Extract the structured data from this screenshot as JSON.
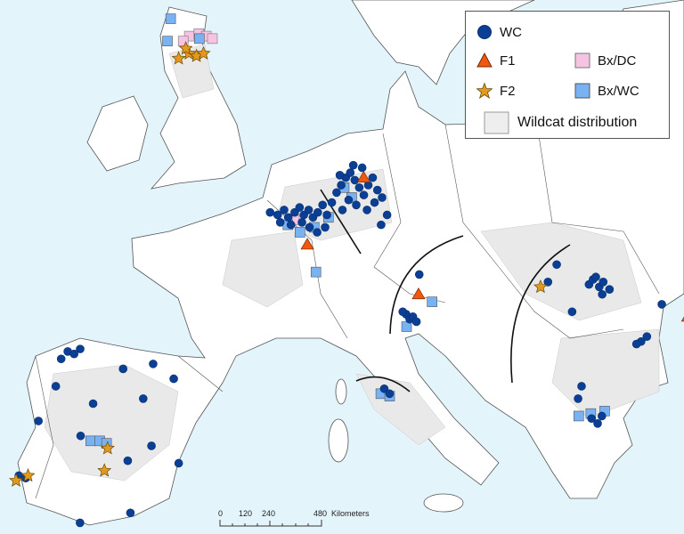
{
  "colors": {
    "sea": "#e3f4fb",
    "land": "#ffffff",
    "border": "#555555",
    "wildcat_distribution": "#e9e9e9",
    "WC": "#0b3f95",
    "F1": "#f0580f",
    "F2": "#e39a1c",
    "Bx/DC": "#f7c3e2",
    "Bx/WC": "#78b2f3"
  },
  "legend": {
    "items": [
      {
        "key": "WC",
        "label": "WC",
        "symbol": "circle"
      },
      {
        "key": "F1",
        "label": "F1",
        "symbol": "triangle"
      },
      {
        "key": "Bx/DC",
        "label": "Bx/DC",
        "symbol": "square"
      },
      {
        "key": "F2",
        "label": "F2",
        "symbol": "star"
      },
      {
        "key": "Bx/WC",
        "label": "Bx/WC",
        "symbol": "square"
      },
      {
        "key": "dist",
        "label": "Wildcat distribution",
        "symbol": "area"
      }
    ]
  },
  "scale_bar": {
    "ticks": [
      "0",
      "120",
      "240",
      "480"
    ],
    "unit": "Kilometers"
  },
  "markers": {
    "WC": [
      [
        3.4,
        49.5
      ],
      [
        3.9,
        49.4
      ],
      [
        4.3,
        49.6
      ],
      [
        4.6,
        49.3
      ],
      [
        5.0,
        49.5
      ],
      [
        5.3,
        49.7
      ],
      [
        5.6,
        49.4
      ],
      [
        5.9,
        49.6
      ],
      [
        6.2,
        49.3
      ],
      [
        6.5,
        49.5
      ],
      [
        6.8,
        49.8
      ],
      [
        7.1,
        49.4
      ],
      [
        4.1,
        49.1
      ],
      [
        4.8,
        49.0
      ],
      [
        5.5,
        49.1
      ],
      [
        6.0,
        48.9
      ],
      [
        7.4,
        49.9
      ],
      [
        7.7,
        50.3
      ],
      [
        8.0,
        50.6
      ],
      [
        8.3,
        50.9
      ],
      [
        8.6,
        51.1
      ],
      [
        8.9,
        50.8
      ],
      [
        9.2,
        50.5
      ],
      [
        9.5,
        50.2
      ],
      [
        9.8,
        50.6
      ],
      [
        10.1,
        50.9
      ],
      [
        10.4,
        50.4
      ],
      [
        8.5,
        50.0
      ],
      [
        9.0,
        49.8
      ],
      [
        9.7,
        49.6
      ],
      [
        10.2,
        49.9
      ],
      [
        10.7,
        50.1
      ],
      [
        8.1,
        49.6
      ],
      [
        8.8,
        51.4
      ],
      [
        9.4,
        51.3
      ],
      [
        7.9,
        51.0
      ],
      [
        11.0,
        49.4
      ],
      [
        10.6,
        49.0
      ],
      [
        6.5,
        48.7
      ],
      [
        7.0,
        48.9
      ],
      [
        12.0,
        45.4
      ],
      [
        12.2,
        45.2
      ],
      [
        12.4,
        45.3
      ],
      [
        11.8,
        45.5
      ],
      [
        12.6,
        45.1
      ],
      [
        12.9,
        47.0
      ],
      [
        23.3,
        46.6
      ],
      [
        23.6,
        46.8
      ],
      [
        23.9,
        46.5
      ],
      [
        24.2,
        46.7
      ],
      [
        24.5,
        46.4
      ],
      [
        23.8,
        46.9
      ],
      [
        24.0,
        46.2
      ],
      [
        21.5,
        47.4
      ],
      [
        20.8,
        46.7
      ],
      [
        22.0,
        45.5
      ],
      [
        25.8,
        44.3
      ],
      [
        26.2,
        44.5
      ],
      [
        25.5,
        44.2
      ],
      [
        22.2,
        41.2
      ],
      [
        22.5,
        41.0
      ],
      [
        22.8,
        41.3
      ],
      [
        21.9,
        42.5
      ],
      [
        21.6,
        42.0
      ],
      [
        27.5,
        45.8
      ],
      [
        10.6,
        42.4
      ],
      [
        10.9,
        42.2
      ],
      [
        -7.9,
        43.9
      ],
      [
        -7.5,
        43.8
      ],
      [
        -7.2,
        44.0
      ],
      [
        -8.2,
        43.6
      ],
      [
        -4.5,
        43.2
      ],
      [
        -2.8,
        43.4
      ],
      [
        -1.5,
        42.8
      ],
      [
        -3.1,
        42.0
      ],
      [
        -5.9,
        41.8
      ],
      [
        -8.8,
        41.1
      ],
      [
        -2.3,
        40.1
      ],
      [
        -3.5,
        39.5
      ],
      [
        -0.7,
        39.4
      ],
      [
        -9.3,
        38.9
      ],
      [
        -8.9,
        38.8
      ],
      [
        -5.6,
        37.0
      ],
      [
        -3.0,
        37.4
      ],
      [
        -8.2,
        42.5
      ],
      [
        -6.3,
        40.5
      ]
    ],
    "F1": [
      [
        9.5,
        50.9
      ],
      [
        5.9,
        48.2
      ],
      [
        12.8,
        46.2
      ],
      [
        28.9,
        45.3
      ]
    ],
    "F2": [
      [
        -4.3,
        55.7
      ],
      [
        -3.6,
        55.9
      ],
      [
        -3.0,
        55.8
      ],
      [
        -2.5,
        55.9
      ],
      [
        -3.9,
        56.1
      ],
      [
        20.3,
        46.5
      ],
      [
        -4.7,
        40.0
      ],
      [
        -4.7,
        39.1
      ],
      [
        -9.4,
        38.7
      ],
      [
        -8.8,
        38.9
      ]
    ],
    "Bx/DC": [
      [
        -3.8,
        56.6
      ],
      [
        -3.1,
        56.7
      ],
      [
        -2.5,
        56.6
      ],
      [
        -2.0,
        56.5
      ],
      [
        -4.2,
        56.4
      ],
      [
        5.0,
        49.2
      ]
    ],
    "Bx/WC": [
      [
        -5.5,
        57.3
      ],
      [
        -5.4,
        56.4
      ],
      [
        -3.0,
        56.5
      ],
      [
        4.6,
        49.0
      ],
      [
        5.4,
        48.7
      ],
      [
        6.3,
        48.9
      ],
      [
        7.2,
        49.3
      ],
      [
        8.2,
        50.5
      ],
      [
        8.7,
        50.1
      ],
      [
        6.5,
        47.1
      ],
      [
        13.6,
        45.9
      ],
      [
        12.0,
        44.9
      ],
      [
        10.4,
        42.2
      ],
      [
        10.9,
        42.1
      ],
      [
        21.5,
        41.3
      ],
      [
        22.2,
        41.4
      ],
      [
        23.0,
        41.5
      ],
      [
        -5.7,
        40.3
      ],
      [
        -5.2,
        40.3
      ],
      [
        -4.8,
        40.2
      ]
    ]
  }
}
